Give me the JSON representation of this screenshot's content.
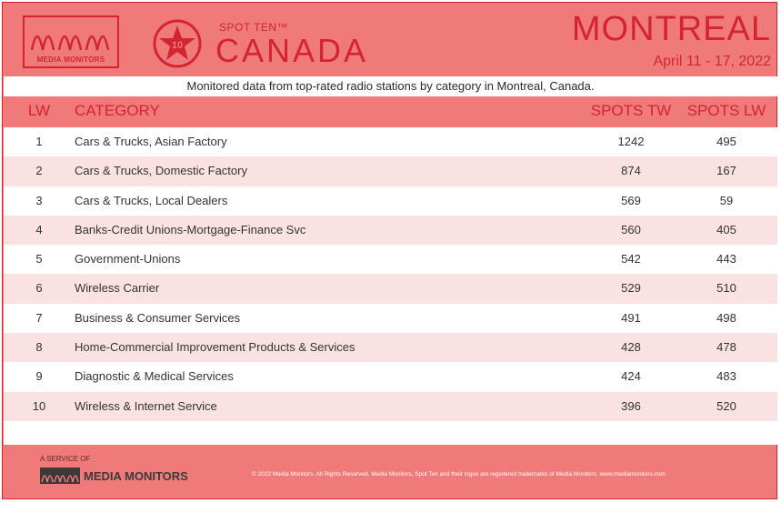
{
  "header": {
    "logo_text": "MEDIA MONITORS",
    "badge_number": "10",
    "spot_ten": "SPOT TEN™",
    "country": "CANADA",
    "city": "MONTREAL",
    "dates": "April 11 - 17, 2022"
  },
  "subtitle": "Monitored data from top-rated radio stations by category in Montreal, Canada.",
  "columns": {
    "lw": "LW",
    "category": "CATEGORY",
    "spots_tw": "SPOTS TW",
    "spots_lw": "SPOTS LW"
  },
  "rows": [
    {
      "lw": "1",
      "category": "Cars & Trucks, Asian Factory",
      "tw": "1242",
      "lw_spots": "495"
    },
    {
      "lw": "2",
      "category": "Cars & Trucks, Domestic Factory",
      "tw": "874",
      "lw_spots": "167"
    },
    {
      "lw": "3",
      "category": "Cars & Trucks, Local Dealers",
      "tw": "569",
      "lw_spots": "59"
    },
    {
      "lw": "4",
      "category": "Banks-Credit Unions-Mortgage-Finance Svc",
      "tw": "560",
      "lw_spots": "405"
    },
    {
      "lw": "5",
      "category": "Government-Unions",
      "tw": "542",
      "lw_spots": "443"
    },
    {
      "lw": "6",
      "category": "Wireless Carrier",
      "tw": "529",
      "lw_spots": "510"
    },
    {
      "lw": "7",
      "category": "Business & Consumer Services",
      "tw": "491",
      "lw_spots": "498"
    },
    {
      "lw": "8",
      "category": "Home-Commercial Improvement Products & Services",
      "tw": "428",
      "lw_spots": "478"
    },
    {
      "lw": "9",
      "category": "Diagnostic & Medical Services",
      "tw": "424",
      "lw_spots": "483"
    },
    {
      "lw": "10",
      "category": "Wireless & Internet Service",
      "tw": "396",
      "lw_spots": "520"
    }
  ],
  "footer": {
    "service_of": "A SERVICE OF",
    "brand": "MEDIA MONITORS",
    "copyright": "© 2022 Media Monitors. All Rights Reserved. Media Monitors, Spot Ten and their logos are registered trademarks of Media Monitors. www.mediamonitors.com"
  },
  "colors": {
    "background": "#f07a7a",
    "accent": "#d32430",
    "row_alt": "#fbe2e2"
  },
  "icons": [
    "media-monitors-wave-logo",
    "star-badge-icon"
  ]
}
